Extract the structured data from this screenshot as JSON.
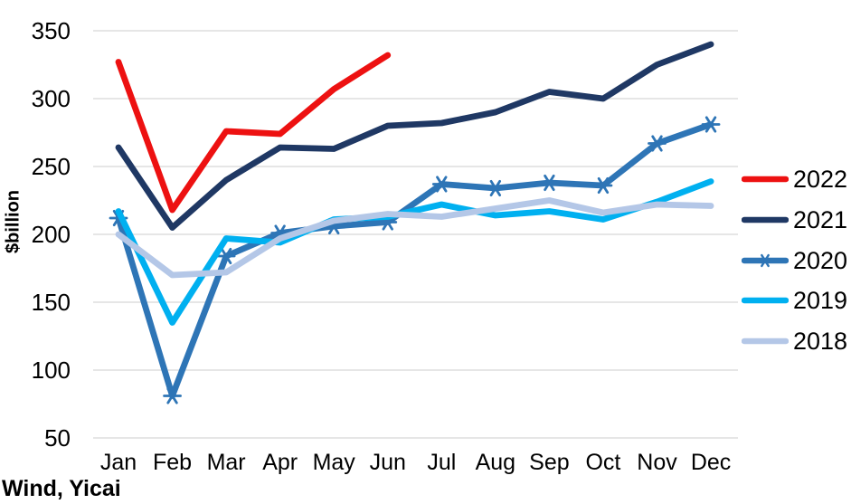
{
  "source_label": "Wind, Yicai",
  "colors": {
    "text": "#000000",
    "grid": "#D6D6D6",
    "background": "#FFFFFF"
  },
  "chart_data": {
    "type": "line",
    "title": "",
    "xlabel": "",
    "ylabel": "$billion",
    "ylim": [
      50,
      350
    ],
    "yticks": [
      350,
      300,
      250,
      200,
      150,
      100,
      50
    ],
    "grid": "horizontal",
    "legend_position": "right",
    "categories": [
      "Jan",
      "Feb",
      "Mar",
      "Apr",
      "May",
      "Jun",
      "Jul",
      "Aug",
      "Sep",
      "Oct",
      "Nov",
      "Dec"
    ],
    "series": [
      {
        "name": "2022",
        "color": "#ED1111",
        "marker": "none",
        "values": [
          327,
          218,
          276,
          274,
          307,
          332
        ]
      },
      {
        "name": "2021",
        "color": "#1F3864",
        "marker": "none",
        "values": [
          264,
          205,
          240,
          264,
          263,
          280,
          282,
          290,
          305,
          300,
          325,
          340
        ]
      },
      {
        "name": "2020",
        "color": "#2E75B6",
        "marker": "x-asterisk",
        "values": [
          212,
          81,
          184,
          201,
          206,
          209,
          237,
          234,
          238,
          236,
          267,
          281
        ]
      },
      {
        "name": "2019",
        "color": "#00B0F0",
        "marker": "none",
        "values": [
          217,
          135,
          197,
          194,
          211,
          213,
          222,
          214,
          217,
          211,
          224,
          239
        ]
      },
      {
        "name": "2018",
        "color": "#B4C7E7",
        "marker": "none",
        "values": [
          200,
          170,
          172,
          197,
          210,
          215,
          213,
          219,
          225,
          216,
          222,
          221
        ]
      }
    ]
  }
}
